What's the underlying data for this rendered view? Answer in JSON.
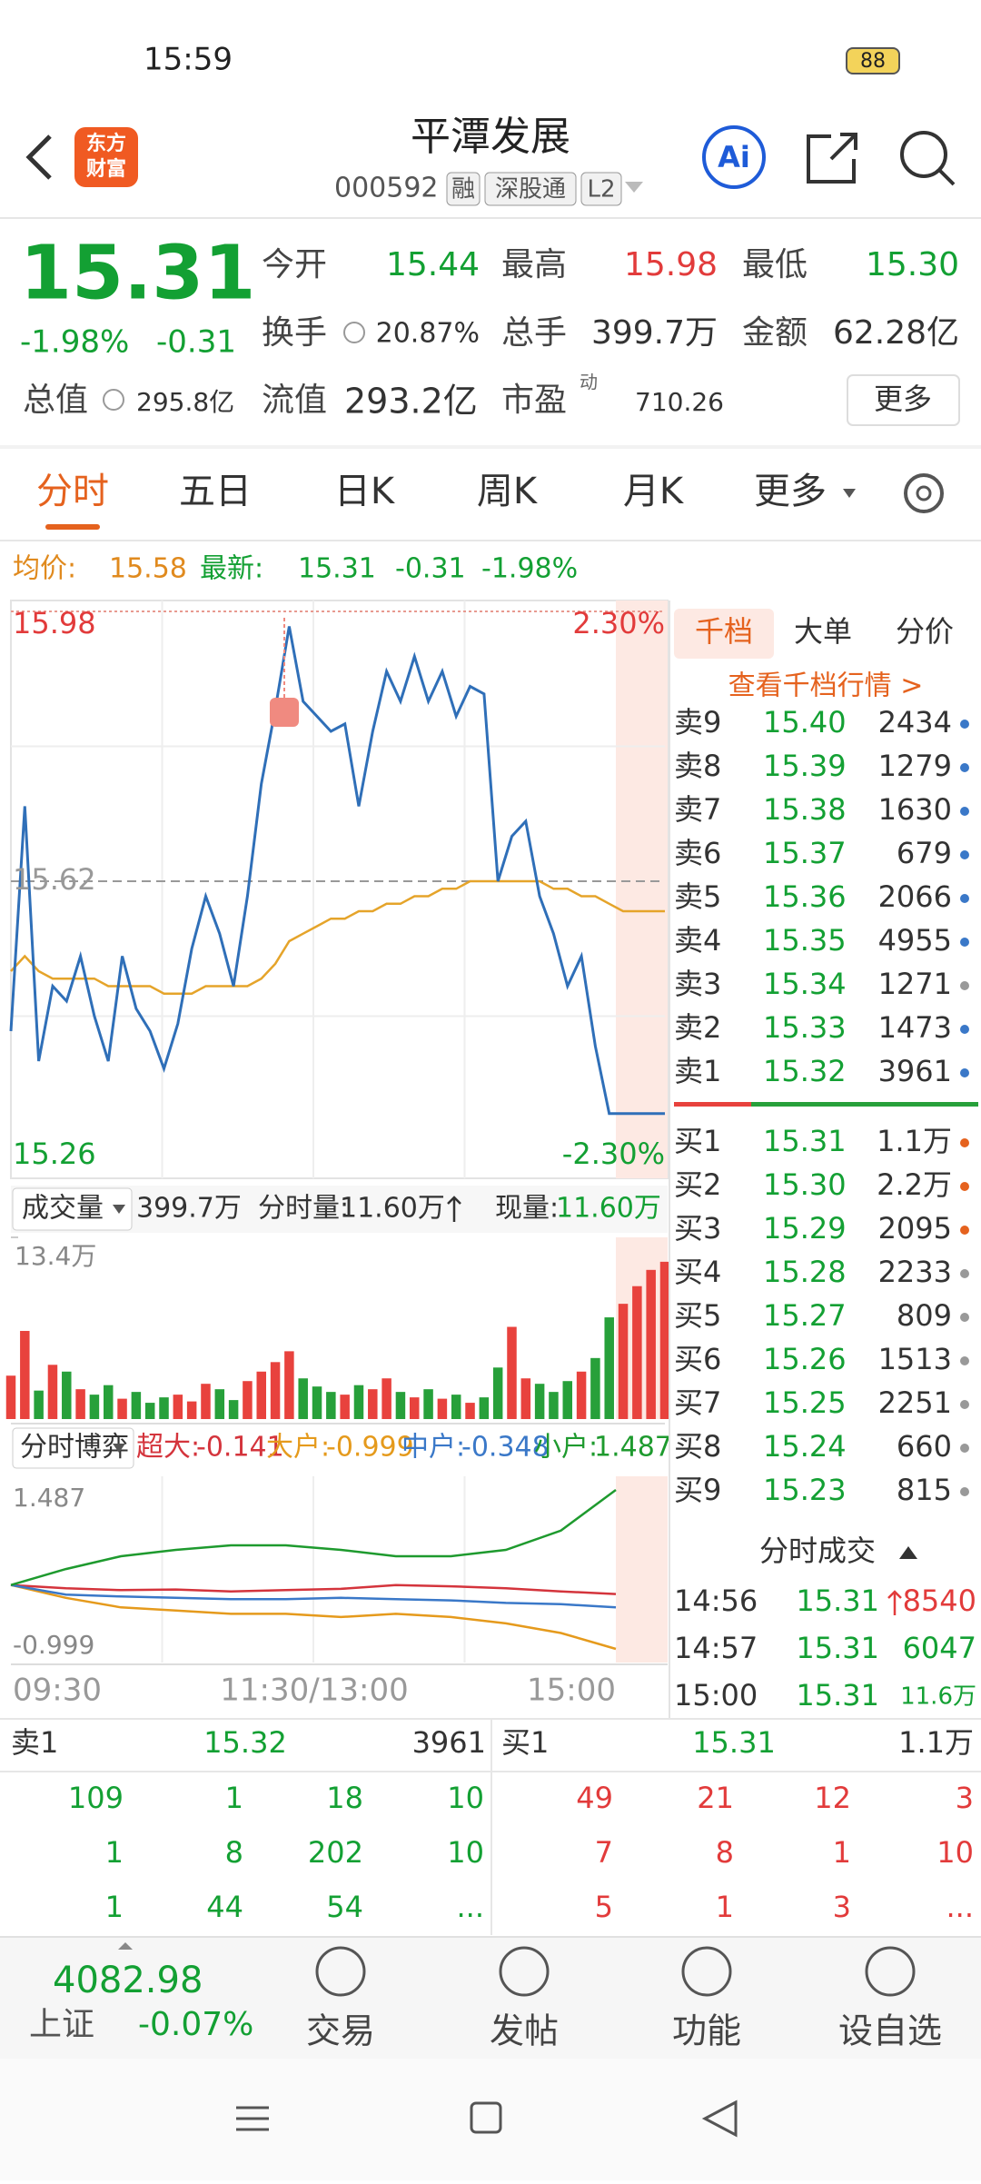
{
  "status_bar": {
    "time": "15:59",
    "battery": "88"
  },
  "header": {
    "logo": [
      "东方",
      "财富"
    ],
    "title": "平潭发展",
    "code": "000592",
    "tags": [
      "融",
      "深股通",
      "L2"
    ],
    "ai": "Ai"
  },
  "quote": {
    "price": "15.31",
    "change_pct": "-1.98%",
    "change": "-0.31",
    "row1": [
      {
        "label": "今开",
        "value": "15.44",
        "color": "#13a033"
      },
      {
        "label": "最高",
        "value": "15.98",
        "color": "#e23b3b"
      },
      {
        "label": "最低",
        "value": "15.30",
        "color": "#13a033"
      }
    ],
    "row2": [
      {
        "label": "换手",
        "value": "20.87%"
      },
      {
        "label": "总手",
        "value": "399.7万"
      },
      {
        "label": "金额",
        "value": "62.28亿"
      }
    ],
    "row3": [
      {
        "label": "总值",
        "value": "295.8亿"
      },
      {
        "label": "流值",
        "value": "293.2亿"
      },
      {
        "label": "市盈",
        "sup": "动",
        "value": "710.26"
      }
    ],
    "more": "更多"
  },
  "tabs": [
    "分时",
    "五日",
    "日K",
    "周K",
    "月K",
    "更多"
  ],
  "info_line": {
    "avg_label": "均价:",
    "avg": "15.58",
    "last_label": "最新:",
    "last": "15.31",
    "change": "-0.31",
    "change_pct": "-1.98%"
  },
  "intraday": {
    "ylim": [
      15.26,
      15.98
    ],
    "ref": 15.62,
    "pct_top": "2.30%",
    "pct_bottom": "-2.30%",
    "price": [
      15.42,
      15.72,
      15.38,
      15.48,
      15.46,
      15.52,
      15.44,
      15.38,
      15.52,
      15.45,
      15.42,
      15.37,
      15.43,
      15.53,
      15.6,
      15.55,
      15.48,
      15.6,
      15.75,
      15.85,
      15.96,
      15.86,
      15.84,
      15.82,
      15.83,
      15.72,
      15.82,
      15.9,
      15.86,
      15.92,
      15.86,
      15.9,
      15.84,
      15.88,
      15.87,
      15.62,
      15.68,
      15.7,
      15.6,
      15.55,
      15.48,
      15.52,
      15.4,
      15.31,
      15.31,
      15.31,
      15.31,
      15.31
    ],
    "avg": [
      15.5,
      15.52,
      15.5,
      15.49,
      15.49,
      15.49,
      15.49,
      15.48,
      15.48,
      15.48,
      15.48,
      15.47,
      15.47,
      15.47,
      15.48,
      15.48,
      15.48,
      15.48,
      15.49,
      15.51,
      15.54,
      15.55,
      15.56,
      15.57,
      15.57,
      15.58,
      15.58,
      15.59,
      15.59,
      15.6,
      15.6,
      15.61,
      15.61,
      15.62,
      15.62,
      15.62,
      15.62,
      15.62,
      15.62,
      15.61,
      15.61,
      15.6,
      15.6,
      15.59,
      15.58,
      15.58,
      15.58,
      15.58
    ],
    "x_labels": [
      "09:30",
      "11:30/13:00",
      "15:00"
    ]
  },
  "volume": {
    "selector": "成交量",
    "total": "399.7万",
    "minute_label": "分时量:",
    "minute": "11.60万",
    "now_label": "现量:",
    "now": "11.60万",
    "ylim": [
      0,
      13.4
    ],
    "yticks": [
      {
        "value": 13.4,
        "label": "13.4万"
      }
    ],
    "values": [
      3.2,
      6.5,
      2.1,
      4.0,
      3.5,
      2.2,
      1.8,
      2.5,
      1.5,
      2.0,
      1.2,
      1.6,
      1.8,
      1.3,
      2.6,
      2.2,
      1.4,
      2.8,
      3.5,
      4.2,
      5.0,
      3.0,
      2.4,
      2.0,
      1.8,
      2.5,
      2.2,
      3.0,
      2.0,
      1.6,
      2.2,
      1.5,
      1.8,
      1.2,
      1.6,
      3.8,
      6.8,
      3.0,
      2.6,
      2.0,
      2.8,
      3.5,
      4.5,
      7.5,
      8.5,
      9.8,
      11.0,
      11.6
    ]
  },
  "flow": {
    "selector": "分时博弈",
    "ylim": [
      -0.999,
      1.487
    ],
    "series": [
      {
        "name": "超大:",
        "value": "-0.141",
        "color": "#d4343c",
        "values": [
          0,
          -0.05,
          -0.08,
          -0.07,
          -0.1,
          -0.08,
          -0.06,
          0.0,
          -0.02,
          -0.05,
          -0.1,
          -0.141
        ]
      },
      {
        "name": "大户:",
        "value": "-0.999",
        "color": "#e59a1c",
        "values": [
          0,
          -0.2,
          -0.35,
          -0.4,
          -0.45,
          -0.45,
          -0.5,
          -0.45,
          -0.5,
          -0.6,
          -0.75,
          -0.999
        ]
      },
      {
        "name": "中户:",
        "value": "-0.348",
        "color": "#3a78c8",
        "values": [
          0,
          -0.15,
          -0.18,
          -0.2,
          -0.22,
          -0.22,
          -0.2,
          -0.22,
          -0.24,
          -0.28,
          -0.3,
          -0.348
        ]
      },
      {
        "name": "小户:",
        "value": "1.487",
        "color": "#1e9a2e",
        "values": [
          0,
          0.25,
          0.45,
          0.55,
          0.62,
          0.62,
          0.55,
          0.45,
          0.45,
          0.55,
          0.85,
          1.487
        ]
      }
    ]
  },
  "order_book": {
    "tabs": [
      "千档",
      "大单",
      "分价"
    ],
    "link": "查看千档行情 >",
    "asks": [
      {
        "label": "卖9",
        "price": "15.40",
        "volume": "2434",
        "dot": "#3a78c8"
      },
      {
        "label": "卖8",
        "price": "15.39",
        "volume": "1279",
        "dot": "#3a78c8"
      },
      {
        "label": "卖7",
        "price": "15.38",
        "volume": "1630",
        "dot": "#3a78c8"
      },
      {
        "label": "卖6",
        "price": "15.37",
        "volume": "679",
        "dot": "#3a78c8"
      },
      {
        "label": "卖5",
        "price": "15.36",
        "volume": "2066",
        "dot": "#3a78c8"
      },
      {
        "label": "卖4",
        "price": "15.35",
        "volume": "4955",
        "dot": "#3a78c8"
      },
      {
        "label": "卖3",
        "price": "15.34",
        "volume": "1271",
        "dot": "#999999"
      },
      {
        "label": "卖2",
        "price": "15.33",
        "volume": "1473",
        "dot": "#3a78c8"
      },
      {
        "label": "卖1",
        "price": "15.32",
        "volume": "3961",
        "dot": "#3a78c8"
      }
    ],
    "bids": [
      {
        "label": "买1",
        "price": "15.31",
        "volume": "1.1万",
        "dot": "#e5621e"
      },
      {
        "label": "买2",
        "price": "15.30",
        "volume": "2.2万",
        "dot": "#e5621e"
      },
      {
        "label": "买3",
        "price": "15.29",
        "volume": "2095",
        "dot": "#e5621e"
      },
      {
        "label": "买4",
        "price": "15.28",
        "volume": "2233",
        "dot": "#999999"
      },
      {
        "label": "买5",
        "price": "15.27",
        "volume": "809",
        "dot": "#999999"
      },
      {
        "label": "买6",
        "price": "15.26",
        "volume": "1513",
        "dot": "#999999"
      },
      {
        "label": "买7",
        "price": "15.25",
        "volume": "2251",
        "dot": "#999999"
      },
      {
        "label": "买8",
        "price": "15.24",
        "volume": "660",
        "dot": "#999999"
      },
      {
        "label": "买9",
        "price": "15.23",
        "volume": "815",
        "dot": "#999999"
      }
    ]
  },
  "trades": {
    "title": "分时成交",
    "rows": [
      {
        "time": "14:56",
        "price": "15.31",
        "volume": "8540",
        "color": "#e23b3b"
      },
      {
        "time": "14:57",
        "price": "15.31",
        "volume": "6047",
        "color": "#13a033"
      },
      {
        "time": "15:00",
        "price": "15.31",
        "volume": "11.6万",
        "color": "#13a033"
      }
    ]
  },
  "level1": {
    "ask": {
      "label": "卖1",
      "price": "15.32",
      "volume": "3961"
    },
    "bid": {
      "label": "买1",
      "price": "15.31",
      "volume": "1.1万"
    },
    "ask_queue": [
      [
        "109",
        "1",
        "18",
        "10"
      ],
      [
        "1",
        "8",
        "202",
        "10"
      ],
      [
        "1",
        "44",
        "54",
        "..."
      ]
    ],
    "bid_queue": [
      [
        "49",
        "21",
        "12",
        "3"
      ],
      [
        "7",
        "8",
        "1",
        "10"
      ],
      [
        "5",
        "1",
        "3",
        "..."
      ]
    ]
  },
  "bottom_nav": {
    "index": {
      "value": "4082.98",
      "name": "上证",
      "change": "-0.07%"
    },
    "items": [
      "交易",
      "发帖",
      "功能",
      "设自选"
    ]
  }
}
